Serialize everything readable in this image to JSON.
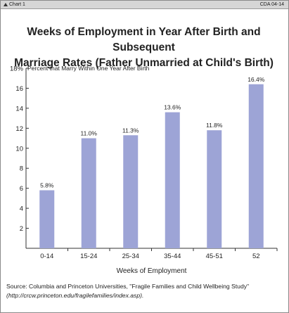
{
  "header": {
    "chart_label": "Chart 1",
    "code": "CDA 04-14"
  },
  "colors": {
    "bar": "#9da4d6",
    "axis": "#333333",
    "header_bg": "#d6d6d6"
  },
  "chart_data": {
    "type": "bar",
    "title_line1": "Weeks of Employment in Year After Birth and Subsequent",
    "title_line2": "Marriage Rates (Father Unmarried at Child's Birth)",
    "ylabel": "Percent that  Marry Within One Year After Birth",
    "xlabel": "Weeks of Employment",
    "categories": [
      "0-14",
      "15-24",
      "25-34",
      "35-44",
      "45-51",
      "52"
    ],
    "values": [
      5.8,
      11.0,
      11.3,
      13.6,
      11.8,
      16.4
    ],
    "data_labels": [
      "5.8%",
      "11.0%",
      "11.3%",
      "13.6%",
      "11.8%",
      "16.4%"
    ],
    "ylim": [
      0,
      18
    ],
    "y_ticks": [
      0,
      2,
      4,
      6,
      8,
      10,
      12,
      14,
      16,
      18
    ],
    "y_tick_labels": [
      "",
      "2",
      "4",
      "6",
      "8",
      "10",
      "12",
      "14",
      "16",
      "18%"
    ],
    "grid": false
  },
  "source": {
    "label": "Source:",
    "text": " Columbia and Princeton Universities, \"Fragile Families and Child Wellbeing Study\"",
    "url": "(http://crcw.princeton.edu/fragilefamilies/index.asp)."
  }
}
